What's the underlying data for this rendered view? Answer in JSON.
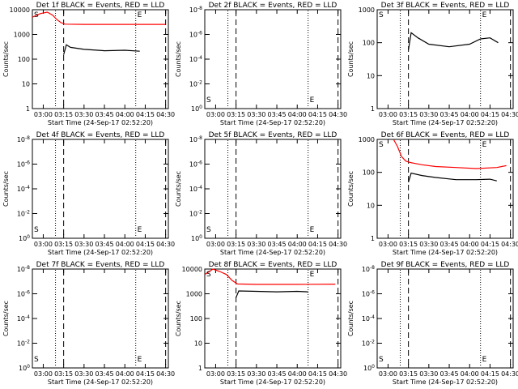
{
  "figure": {
    "x_axis_label": "Start Time (24-Sep-17 02:52:20)",
    "y_axis_label": "Counts/sec",
    "time_ticks": [
      "03:00",
      "03:15",
      "03:30",
      "03:45",
      "04:00",
      "04:15",
      "04:30"
    ],
    "marker_labels": {
      "start": "S",
      "end": "E"
    }
  },
  "chart_data": [
    {
      "type": "line",
      "title": "Det 1f BLACK = Events, RED = LLD",
      "ylim": [
        1,
        10000
      ],
      "yscale": "log",
      "y_ticks": [
        "1",
        "10",
        "100",
        "1000",
        "10000"
      ],
      "series": [
        {
          "color": "#ff0000",
          "x": [
            "02:52",
            "02:58",
            "03:03",
            "03:07",
            "03:10",
            "03:13",
            "03:16",
            "03:30",
            "04:00",
            "04:30"
          ],
          "y": [
            5000,
            7000,
            8000,
            6000,
            4000,
            3000,
            2600,
            2550,
            2550,
            2550
          ]
        },
        {
          "color": "#000000",
          "x": [
            "03:15",
            "03:17",
            "03:20",
            "03:30",
            "03:45",
            "04:00",
            "04:11"
          ],
          "y": [
            150,
            380,
            300,
            250,
            220,
            230,
            210
          ]
        }
      ],
      "markers": {
        "start": "02:52",
        "end": "04:08"
      },
      "vlines": {
        "dotted": [
          "03:09",
          "04:08"
        ],
        "dashed": [
          "03:15",
          "04:30"
        ]
      }
    },
    {
      "type": "line",
      "title": "Det 2f BLACK = Events, RED = LLD",
      "ylim": [
        1,
        1e-08
      ],
      "yscale": "log",
      "y_ticks": [
        "10^0",
        "10^-2",
        "10^-4",
        "10^-6",
        "10^-8"
      ],
      "series": [],
      "markers": {
        "start": "02:52",
        "end": "04:08"
      },
      "vlines": {
        "dotted": [
          "03:09",
          "04:08"
        ],
        "dashed": [
          "03:15",
          "04:30"
        ]
      }
    },
    {
      "type": "line",
      "title": "Det 3f BLACK = Events, RED = LLD",
      "ylim": [
        1,
        1000
      ],
      "yscale": "log",
      "y_ticks": [
        "1",
        "10",
        "100",
        "1000"
      ],
      "series": [
        {
          "color": "#000000",
          "x": [
            "03:15",
            "03:17",
            "03:22",
            "03:30",
            "03:45",
            "04:00",
            "04:08",
            "04:15",
            "04:21"
          ],
          "y": [
            60,
            200,
            140,
            90,
            75,
            90,
            130,
            140,
            100
          ]
        }
      ],
      "markers": {
        "start": "02:52",
        "end": "04:08"
      },
      "vlines": {
        "dotted": [
          "03:09",
          "04:08"
        ],
        "dashed": [
          "03:15",
          "04:30"
        ]
      }
    },
    {
      "type": "line",
      "title": "Det 4f BLACK = Events, RED = LLD",
      "ylim": [
        1,
        1e-08
      ],
      "yscale": "log",
      "y_ticks": [
        "10^0",
        "10^-2",
        "10^-4",
        "10^-6",
        "10^-8"
      ],
      "series": [],
      "markers": {
        "start": "02:52",
        "end": "04:08"
      },
      "vlines": {
        "dotted": [
          "03:09",
          "04:08"
        ],
        "dashed": [
          "03:15",
          "04:30"
        ]
      }
    },
    {
      "type": "line",
      "title": "Det 5f BLACK = Events, RED = LLD",
      "ylim": [
        1,
        1e-08
      ],
      "yscale": "log",
      "y_ticks": [
        "10^0",
        "10^-2",
        "10^-4",
        "10^-6",
        "10^-8"
      ],
      "series": [],
      "markers": {
        "start": "02:52",
        "end": "04:08"
      },
      "vlines": {
        "dotted": [
          "03:09",
          "04:08"
        ],
        "dashed": [
          "03:15",
          "04:30"
        ]
      }
    },
    {
      "type": "line",
      "title": "Det 6f BLACK = Events, RED = LLD",
      "ylim": [
        1,
        1000
      ],
      "yscale": "log",
      "y_ticks": [
        "1",
        "10",
        "100",
        "1000"
      ],
      "series": [
        {
          "color": "#ff0000",
          "x": [
            "03:04",
            "03:07",
            "03:10",
            "03:13",
            "03:16",
            "03:25",
            "03:35",
            "03:50",
            "04:05",
            "04:20",
            "04:27"
          ],
          "y": [
            1000,
            600,
            300,
            220,
            200,
            170,
            150,
            140,
            130,
            140,
            160
          ]
        },
        {
          "color": "#000000",
          "x": [
            "03:15",
            "03:17",
            "03:25",
            "03:35",
            "03:50",
            "04:05",
            "04:15",
            "04:20"
          ],
          "y": [
            50,
            95,
            80,
            70,
            60,
            60,
            62,
            55
          ]
        }
      ],
      "markers": {
        "start": "02:52",
        "end": "04:08"
      },
      "vlines": {
        "dotted": [
          "03:09",
          "04:08"
        ],
        "dashed": [
          "03:15",
          "04:30"
        ]
      }
    },
    {
      "type": "line",
      "title": "Det 7f BLACK = Events, RED = LLD",
      "ylim": [
        1,
        1e-08
      ],
      "yscale": "log",
      "y_ticks": [
        "10^0",
        "10^-2",
        "10^-4",
        "10^-6",
        "10^-8"
      ],
      "series": [],
      "markers": {
        "start": "02:52",
        "end": "04:08"
      },
      "vlines": {
        "dotted": [
          "03:09",
          "04:08"
        ],
        "dashed": [
          "03:15",
          "04:30"
        ]
      }
    },
    {
      "type": "line",
      "title": "Det 8f BLACK = Events, RED = LLD",
      "ylim": [
        1,
        10000
      ],
      "yscale": "log",
      "y_ticks": [
        "1",
        "10",
        "100",
        "1000",
        "10000"
      ],
      "series": [
        {
          "color": "#ff0000",
          "x": [
            "02:52",
            "02:58",
            "03:03",
            "03:08",
            "03:12",
            "03:16",
            "03:30",
            "04:00",
            "04:28"
          ],
          "y": [
            6000,
            10000,
            8000,
            6000,
            3500,
            2500,
            2400,
            2400,
            2450
          ]
        },
        {
          "color": "#000000",
          "x": [
            "03:15",
            "03:17",
            "03:30",
            "03:45",
            "04:00",
            "04:08"
          ],
          "y": [
            700,
            1300,
            1250,
            1200,
            1250,
            1200
          ]
        }
      ],
      "markers": {
        "start": "02:52",
        "end": "04:08"
      },
      "vlines": {
        "dotted": [
          "03:09",
          "04:08"
        ],
        "dashed": [
          "03:15",
          "04:30"
        ]
      }
    },
    {
      "type": "line",
      "title": "Det 9f BLACK = Events, RED = LLD",
      "ylim": [
        1,
        1e-08
      ],
      "yscale": "log",
      "y_ticks": [
        "10^0",
        "10^-2",
        "10^-4",
        "10^-6",
        "10^-8"
      ],
      "series": [],
      "markers": {
        "start": "02:52",
        "end": "04:08"
      },
      "vlines": {
        "dotted": [
          "03:09",
          "04:08"
        ],
        "dashed": [
          "03:15",
          "04:30"
        ]
      }
    }
  ]
}
